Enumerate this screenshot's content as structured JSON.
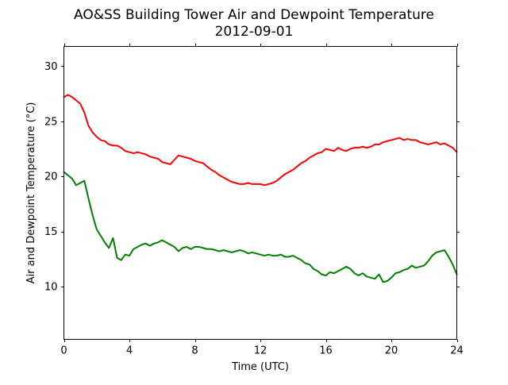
{
  "chart_data": {
    "type": "line",
    "title": "AO&SS Building Tower Air and Dewpoint Temperature",
    "subtitle": "2012-09-01",
    "xlabel": "Time (UTC)",
    "ylabel": "Air and Dewpoint Temperature (°C)",
    "xlim": [
      0,
      24
    ],
    "ylim": [
      5.2,
      31.8
    ],
    "xticks": [
      0,
      4,
      8,
      12,
      16,
      20,
      24
    ],
    "yticks": [
      10,
      15,
      20,
      25,
      30
    ],
    "grid": false,
    "series": [
      {
        "color": "#ff0000",
        "x": [
          0,
          0.25,
          0.5,
          0.75,
          1.0,
          1.25,
          1.5,
          1.75,
          2.0,
          2.25,
          2.5,
          2.75,
          3.0,
          3.25,
          3.5,
          3.75,
          4.0,
          4.25,
          4.5,
          4.75,
          5.0,
          5.25,
          5.5,
          5.75,
          6.0,
          6.25,
          6.5,
          6.75,
          7.0,
          7.25,
          7.5,
          7.75,
          8.0,
          8.25,
          8.5,
          8.75,
          9.0,
          9.25,
          9.5,
          9.75,
          10.0,
          10.25,
          10.5,
          10.75,
          11.0,
          11.25,
          11.5,
          11.75,
          12.0,
          12.25,
          12.5,
          12.75,
          13.0,
          13.25,
          13.5,
          13.75,
          14.0,
          14.25,
          14.5,
          14.75,
          15.0,
          15.25,
          15.5,
          15.75,
          16.0,
          16.25,
          16.5,
          16.75,
          17.0,
          17.25,
          17.5,
          17.75,
          18.0,
          18.25,
          18.5,
          18.75,
          19.0,
          19.25,
          19.5,
          19.75,
          20.0,
          20.25,
          20.5,
          20.75,
          21.0,
          21.25,
          21.5,
          21.75,
          22.0,
          22.25,
          22.5,
          22.75,
          23.0,
          23.25,
          23.5,
          23.75,
          24.0
        ],
        "values": [
          27.2,
          27.4,
          27.2,
          26.9,
          26.6,
          25.8,
          24.6,
          24.0,
          23.6,
          23.3,
          23.2,
          22.9,
          22.8,
          22.8,
          22.6,
          22.3,
          22.2,
          22.1,
          22.2,
          22.1,
          22.0,
          21.8,
          21.7,
          21.6,
          21.3,
          21.2,
          21.1,
          21.5,
          21.9,
          21.8,
          21.7,
          21.6,
          21.4,
          21.3,
          21.2,
          20.9,
          20.6,
          20.4,
          20.1,
          19.9,
          19.7,
          19.5,
          19.4,
          19.3,
          19.3,
          19.4,
          19.3,
          19.3,
          19.3,
          19.2,
          19.3,
          19.4,
          19.6,
          19.9,
          20.2,
          20.4,
          20.6,
          20.9,
          21.2,
          21.4,
          21.7,
          21.9,
          22.1,
          22.2,
          22.5,
          22.4,
          22.3,
          22.6,
          22.4,
          22.3,
          22.5,
          22.6,
          22.6,
          22.7,
          22.6,
          22.7,
          22.9,
          22.9,
          23.1,
          23.2,
          23.3,
          23.4,
          23.5,
          23.3,
          23.4,
          23.3,
          23.3,
          23.1,
          23.0,
          22.9,
          23.0,
          23.1,
          22.9,
          23.0,
          22.8,
          22.6,
          22.2
        ]
      },
      {
        "color": "#008000",
        "x": [
          0,
          0.25,
          0.5,
          0.75,
          1.0,
          1.25,
          1.5,
          1.75,
          2.0,
          2.25,
          2.5,
          2.75,
          3.0,
          3.25,
          3.5,
          3.75,
          4.0,
          4.25,
          4.5,
          4.75,
          5.0,
          5.25,
          5.5,
          5.75,
          6.0,
          6.25,
          6.5,
          6.75,
          7.0,
          7.25,
          7.5,
          7.75,
          8.0,
          8.25,
          8.5,
          8.75,
          9.0,
          9.25,
          9.5,
          9.75,
          10.0,
          10.25,
          10.5,
          10.75,
          11.0,
          11.25,
          11.5,
          11.75,
          12.0,
          12.25,
          12.5,
          12.75,
          13.0,
          13.25,
          13.5,
          13.75,
          14.0,
          14.25,
          14.5,
          14.75,
          15.0,
          15.25,
          15.5,
          15.75,
          16.0,
          16.25,
          16.5,
          16.75,
          17.0,
          17.25,
          17.5,
          17.75,
          18.0,
          18.25,
          18.5,
          18.75,
          19.0,
          19.25,
          19.5,
          19.75,
          20.0,
          20.25,
          20.5,
          20.75,
          21.0,
          21.25,
          21.5,
          21.75,
          22.0,
          22.25,
          22.5,
          22.75,
          23.0,
          23.25,
          23.5,
          23.75,
          24.0
        ],
        "values": [
          20.4,
          20.1,
          19.8,
          19.2,
          19.4,
          19.6,
          18.0,
          16.5,
          15.2,
          14.6,
          14.0,
          13.5,
          14.4,
          12.6,
          12.4,
          12.9,
          12.8,
          13.4,
          13.6,
          13.8,
          13.9,
          13.7,
          13.9,
          14.0,
          14.2,
          14.0,
          13.8,
          13.6,
          13.2,
          13.5,
          13.6,
          13.4,
          13.6,
          13.6,
          13.5,
          13.4,
          13.4,
          13.3,
          13.2,
          13.3,
          13.2,
          13.1,
          13.2,
          13.3,
          13.2,
          13.0,
          13.1,
          13.0,
          12.9,
          12.8,
          12.9,
          12.8,
          12.8,
          12.9,
          12.7,
          12.7,
          12.8,
          12.6,
          12.4,
          12.1,
          12.0,
          11.6,
          11.4,
          11.1,
          11.0,
          11.3,
          11.2,
          11.4,
          11.6,
          11.8,
          11.6,
          11.2,
          11.0,
          11.2,
          10.9,
          10.8,
          10.7,
          11.1,
          10.4,
          10.5,
          10.8,
          11.2,
          11.3,
          11.5,
          11.6,
          11.9,
          11.7,
          11.8,
          11.9,
          12.3,
          12.8,
          13.1,
          13.2,
          13.3,
          12.7,
          12.0,
          11.1
        ]
      }
    ]
  }
}
